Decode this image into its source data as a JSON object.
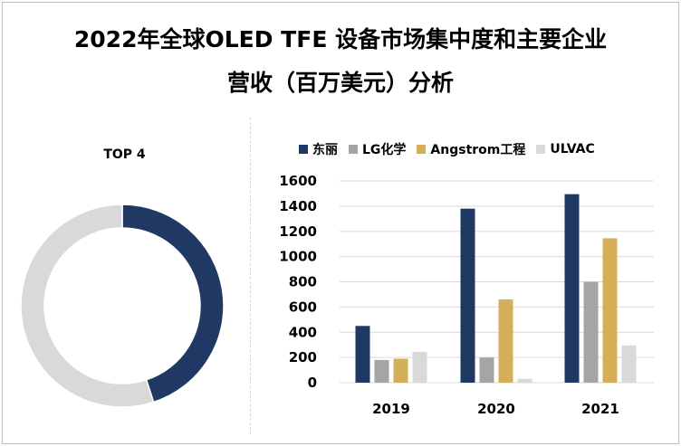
{
  "title_line1": "2022年全球OLED TFE 设备市场集中度和主要企业",
  "title_line2": "营收（百万美元）分析",
  "chart_data": [
    {
      "type": "pie",
      "subtype": "donut",
      "title": "TOP 4",
      "slices": [
        {
          "label": "TOP 4",
          "value": 0.45,
          "color": "#203864"
        },
        {
          "label": "",
          "value": 0.55,
          "color": "#d9d9d9"
        }
      ]
    },
    {
      "type": "bar",
      "categories": [
        "2019",
        "2020",
        "2021"
      ],
      "ylim": [
        0,
        1600
      ],
      "yticks": [
        "0",
        "200",
        "400",
        "600",
        "800",
        "1000",
        "1200",
        "1400",
        "1600"
      ],
      "grid": true,
      "legend_position": "top",
      "series": [
        {
          "name": "东丽",
          "color": "#203864",
          "values": [
            450,
            1380,
            1495
          ]
        },
        {
          "name": "LG化学",
          "color": "#a5a5a5",
          "values": [
            180,
            200,
            800
          ]
        },
        {
          "name": "Angstrom工程",
          "color": "#d4af57",
          "values": [
            190,
            660,
            1145
          ]
        },
        {
          "name": "ULVAC",
          "color": "#d9d9d9",
          "values": [
            245,
            30,
            295
          ]
        }
      ]
    }
  ]
}
